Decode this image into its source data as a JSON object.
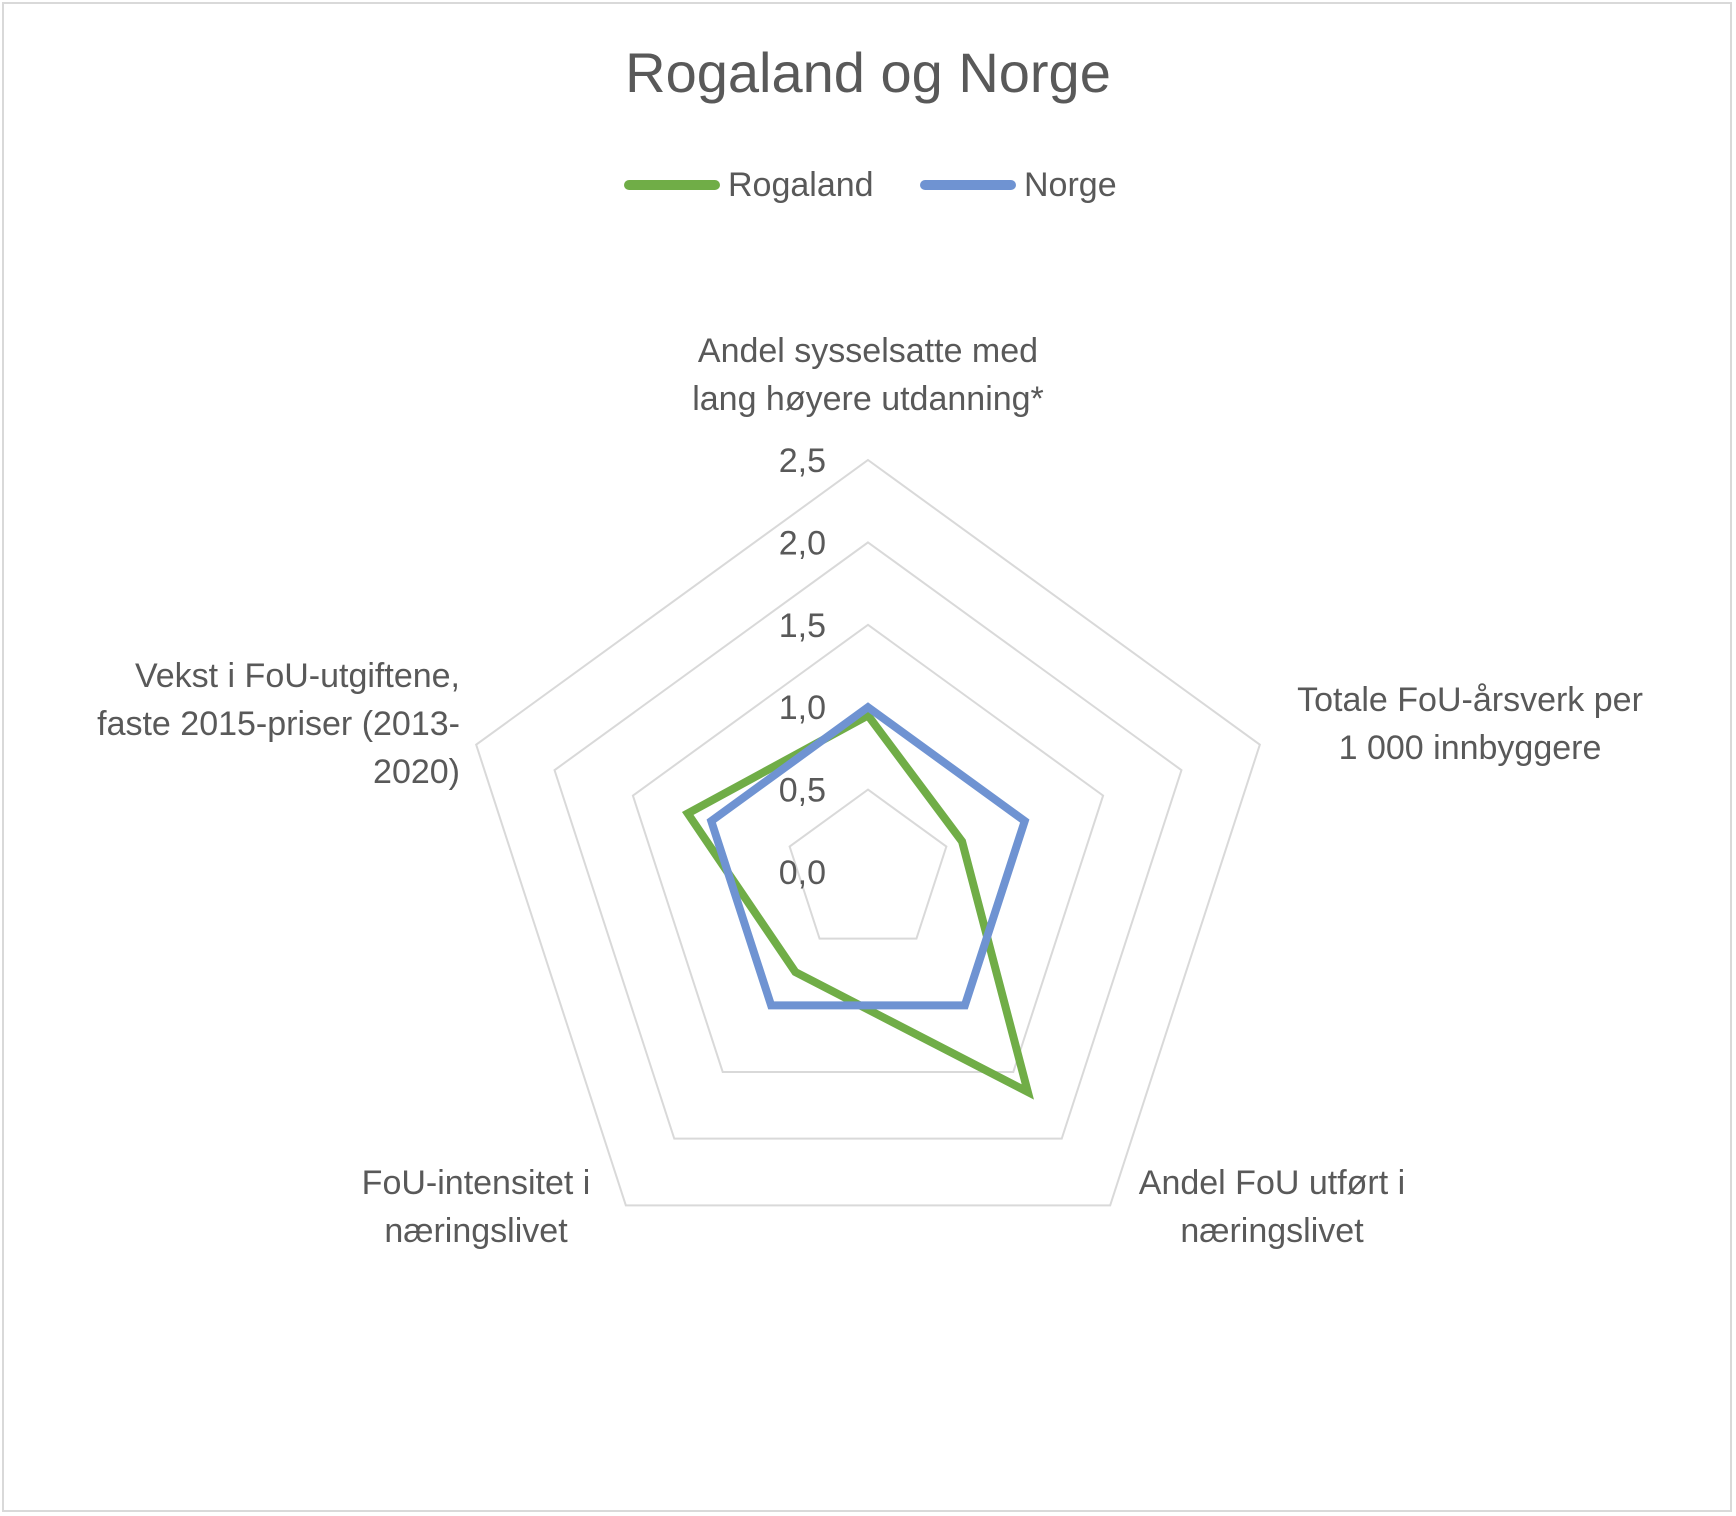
{
  "chart_data": {
    "type": "radar",
    "title": "Rogaland og Norge",
    "categories": [
      "Andel sysselsatte med lang høyere utdanning*",
      "Totale FoU-årsverk per 1 000 innbyggere",
      "Andel FoU utført i næringslivet",
      "FoU-intensitet i næringslivet",
      "Vekst i FoU-utgiftene, faste 2015-priser (2013-2020)"
    ],
    "category_lines": [
      [
        "Andel sysselsatte med",
        "lang høyere utdanning*"
      ],
      [
        "Totale FoU-årsverk per",
        "1 000 innbyggere"
      ],
      [
        "Andel FoU utført i",
        "næringslivet"
      ],
      [
        "FoU-intensitet i",
        "næringslivet"
      ],
      [
        "Vekst i FoU-utgiftene,",
        "faste 2015-priser (2013-",
        "2020)"
      ]
    ],
    "series": [
      {
        "name": "Rogaland",
        "color": "#70ad47",
        "values": [
          0.95,
          0.6,
          1.65,
          0.75,
          1.15
        ]
      },
      {
        "name": "Norge",
        "color": "#6f93d2",
        "values": [
          1.0,
          1.0,
          1.0,
          1.0,
          1.0
        ]
      }
    ],
    "rlim": [
      0,
      2.5
    ],
    "ticks": [
      "0,0",
      "0,5",
      "1,0",
      "1,5",
      "2,0",
      "2,5"
    ],
    "grid": true,
    "legend_position": "top",
    "grid_color": "#d9d9d9",
    "text_color": "#595959"
  }
}
